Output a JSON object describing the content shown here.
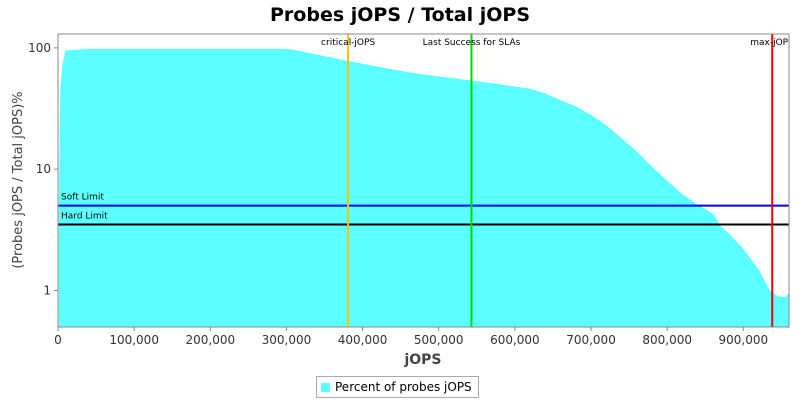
{
  "chart_data": {
    "type": "area",
    "title": "Probes jOPS / Total jOPS",
    "xlabel": "jOPS",
    "ylabel": "(Probes jOPS / Total jOPS)%",
    "x_scale": "linear",
    "y_scale": "log",
    "xlim": [
      0,
      960000
    ],
    "ylim": [
      0.5,
      130
    ],
    "x_ticks": [
      0,
      100000,
      200000,
      300000,
      400000,
      500000,
      600000,
      700000,
      800000,
      900000
    ],
    "x_tick_labels": [
      "0",
      "100,000",
      "200,000",
      "300,000",
      "400,000",
      "500,000",
      "600,000",
      "700,000",
      "800,000",
      "900,000"
    ],
    "y_ticks": [
      1,
      10,
      100
    ],
    "y_tick_labels": [
      "1",
      "10",
      "100"
    ],
    "grid": false,
    "legend_position": "bottom",
    "series": [
      {
        "name": "Percent of probes jOPS",
        "color": "#5BFFFF",
        "x": [
          1000,
          3000,
          6000,
          10000,
          40000,
          100000,
          200000,
          300000,
          310000,
          340000,
          380000,
          420000,
          460000,
          500000,
          540000,
          580000,
          620000,
          640000,
          660000,
          680000,
          700000,
          720000,
          740000,
          760000,
          780000,
          800000,
          820000,
          840000,
          860000,
          870000,
          880000,
          900000,
          920000,
          935000,
          945000,
          955000,
          960000
        ],
        "y": [
          5,
          45,
          75,
          95,
          98,
          98,
          98,
          98,
          96,
          88,
          78,
          70,
          63,
          58,
          54,
          50,
          46,
          42,
          37,
          33,
          28,
          23,
          18,
          14,
          10.5,
          8,
          6.2,
          5.1,
          4.3,
          3.4,
          3.0,
          2.2,
          1.5,
          1.0,
          0.9,
          0.88,
          0.95
        ]
      }
    ],
    "vertical_markers": [
      {
        "label": "critical-jOPS",
        "x": 381000,
        "color": "#FFC000"
      },
      {
        "label": "Last Success for SLAs",
        "x": 543000,
        "color": "#00DD00"
      },
      {
        "label": "max-jOP",
        "x": 938000,
        "color": "#EE0000"
      }
    ],
    "horizontal_markers": [
      {
        "label": "Soft Limit",
        "y": 5,
        "color": "#0000EE"
      },
      {
        "label": "Hard Limit",
        "y": 3.5,
        "color": "#000000"
      }
    ]
  },
  "legend": {
    "label": "Percent of probes jOPS",
    "color": "#5BFFFF"
  }
}
